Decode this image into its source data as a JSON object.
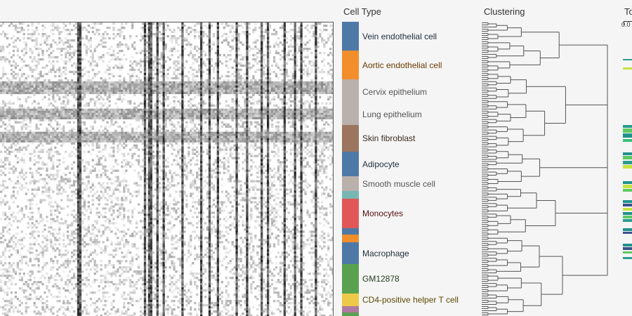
{
  "chart_data": [
    {
      "type": "heatmap",
      "description_hidden": true,
      "rows": 140,
      "cols": 160,
      "colormap": [
        "#ffffff",
        "#111111"
      ],
      "dark_columns": [
        37,
        38,
        69,
        71,
        72,
        75,
        78,
        87,
        96,
        100,
        104,
        113,
        118,
        125,
        128,
        136,
        141,
        144,
        151
      ],
      "dark_row_bands": [
        [
          28,
          33
        ],
        [
          41,
          45
        ],
        [
          52,
          56
        ]
      ],
      "row_groups": [
        "Vein endothelial cell",
        "Aortic endothelial cell",
        "Cervix epithelium",
        "Lung epithelium",
        "Skin fibroblast",
        "Adipocyte",
        "Smooth muscle cell",
        "",
        "Monocytes",
        "",
        "",
        "Macrophage",
        "GM12878",
        "CD4-positive helper T cell",
        "",
        ""
      ]
    },
    {
      "type": "bar",
      "title": "Cell Type",
      "categories": [
        "Vein endothelial cell",
        "Aortic endothelial cell",
        "Cervix epithelium",
        "Lung epithelium",
        "Skin fibroblast",
        "Adipocyte",
        "Smooth muscle cell",
        "",
        "Monocytes",
        "",
        "",
        "Macrophage",
        "GM12878",
        "CD4-positive helper T cell",
        "",
        ""
      ],
      "values": [
        41,
        41,
        35,
        30,
        38,
        35,
        21,
        11,
        42,
        9,
        11,
        31,
        42,
        18,
        9,
        5
      ],
      "colors": [
        "#4e79a7",
        "#f28e2b",
        "#bab0ac",
        "#bab0ac",
        "#9c755f",
        "#4e79a7",
        "#bab0ac",
        "#76b7b2",
        "#e15759",
        "#4e79a7",
        "#f28e2b",
        "#4e79a7",
        "#59a14f",
        "#edc948",
        "#b07aa1",
        "#59a14f"
      ],
      "label_colors": [
        "#1f2d3d",
        "#6b3a00",
        "#555555",
        "#555555",
        "#3a2a20",
        "#1f2d3d",
        "#555555",
        "",
        "#5a1010",
        "",
        "",
        "#1f2d3d",
        "#1f3d17",
        "#5a4a00",
        "",
        ""
      ]
    },
    {
      "type": "dendrogram",
      "title": "Clustering",
      "leaves": 140
    }
  ],
  "third_panel": {
    "title": "To",
    "axis_label": "0.0",
    "strips": [
      {
        "y": 84,
        "h": 2,
        "color": "#2a9d8f"
      },
      {
        "y": 96,
        "h": 3,
        "color": "#c7e340"
      },
      {
        "y": 178,
        "h": 4,
        "color": "#2a9d8f"
      },
      {
        "y": 183,
        "h": 6,
        "color": "#5ec962"
      },
      {
        "y": 190,
        "h": 6,
        "color": "#21918c"
      },
      {
        "y": 198,
        "h": 4,
        "color": "#3bbf7a"
      },
      {
        "y": 217,
        "h": 4,
        "color": "#21918c"
      },
      {
        "y": 222,
        "h": 5,
        "color": "#5ec962"
      },
      {
        "y": 229,
        "h": 5,
        "color": "#2a9d8f"
      },
      {
        "y": 235,
        "h": 5,
        "color": "#c7e340"
      },
      {
        "y": 258,
        "h": 4,
        "color": "#21918c"
      },
      {
        "y": 263,
        "h": 5,
        "color": "#c7e340"
      },
      {
        "y": 269,
        "h": 4,
        "color": "#5ec962"
      },
      {
        "y": 285,
        "h": 4,
        "color": "#21918c"
      },
      {
        "y": 290,
        "h": 4,
        "color": "#3b528b"
      },
      {
        "y": 296,
        "h": 4,
        "color": "#c7e340"
      },
      {
        "y": 302,
        "h": 4,
        "color": "#21918c"
      },
      {
        "y": 307,
        "h": 4,
        "color": "#5ec962"
      },
      {
        "y": 312,
        "h": 4,
        "color": "#2a9d8f"
      },
      {
        "y": 325,
        "h": 4,
        "color": "#21918c"
      },
      {
        "y": 330,
        "h": 3,
        "color": "#3b528b"
      },
      {
        "y": 347,
        "h": 4,
        "color": "#21918c"
      },
      {
        "y": 352,
        "h": 4,
        "color": "#3b528b"
      },
      {
        "y": 358,
        "h": 3,
        "color": "#5ec962"
      },
      {
        "y": 366,
        "h": 3,
        "color": "#2a9d8f"
      }
    ]
  }
}
